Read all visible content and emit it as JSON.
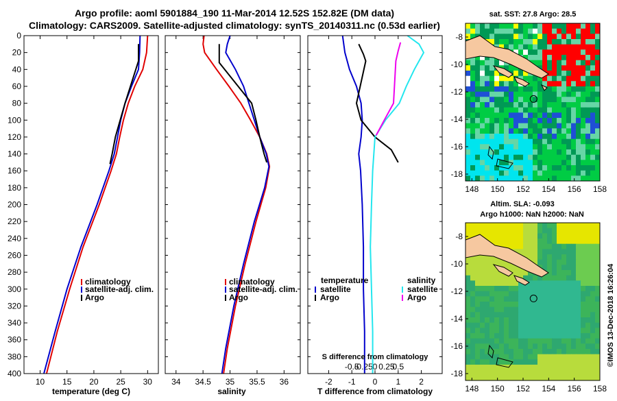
{
  "header": {
    "title_line1": "Argo profile: aoml 5901884_190 11-Mar-2014 12.52S 152.82E (DM data)",
    "title_line2": "Climatology: CARS2009. Satellite-adjusted climatology: synTS_20140311.nc (0.53d earlier)"
  },
  "colors": {
    "climatology": "#e00000",
    "satellite": "#0000cc",
    "argo": "#000000",
    "sal_satellite": "#22e6ee",
    "sal_argo": "#ee00ee"
  },
  "chart_data": [
    {
      "type": "line",
      "id": "temperature",
      "xlabel": "temperature (deg C)",
      "ylabel": "",
      "xlim": [
        7,
        32
      ],
      "ylim": [
        0,
        400
      ],
      "xticks": [
        10,
        15,
        20,
        25,
        30
      ],
      "yticks": [
        0,
        20,
        40,
        60,
        80,
        100,
        120,
        140,
        160,
        180,
        200,
        220,
        240,
        260,
        280,
        300,
        320,
        340,
        360,
        380,
        400
      ],
      "legend": [
        "climatology",
        "satellite-adj. clim.",
        "Argo"
      ],
      "series": [
        {
          "name": "climatology",
          "color": "#e00000",
          "depth": [
            0,
            20,
            40,
            60,
            80,
            100,
            120,
            140,
            160,
            200,
            250,
            300,
            350,
            400
          ],
          "values": [
            30.0,
            29.8,
            29.1,
            27.6,
            26.4,
            25.5,
            24.8,
            24.2,
            23.2,
            21.0,
            18.0,
            15.5,
            13.2,
            11.2
          ]
        },
        {
          "name": "satellite-adj. clim.",
          "color": "#0000cc",
          "depth": [
            0,
            20,
            40,
            60,
            80,
            100,
            120,
            140,
            160,
            200,
            250,
            300,
            350,
            400
          ],
          "values": [
            28.6,
            28.5,
            28.3,
            27.0,
            25.8,
            25.0,
            24.4,
            23.8,
            22.8,
            20.6,
            17.6,
            15.0,
            12.8,
            10.7
          ]
        },
        {
          "name": "Argo",
          "color": "#000000",
          "depth": [
            10,
            30,
            80,
            100,
            120,
            140,
            152
          ],
          "values": [
            28.3,
            28.3,
            25.8,
            24.9,
            24.0,
            23.4,
            23.0
          ]
        }
      ]
    },
    {
      "type": "line",
      "id": "salinity",
      "xlabel": "salinity",
      "ylabel": "",
      "xlim": [
        33.8,
        36.3
      ],
      "ylim": [
        0,
        400
      ],
      "xticks": [
        34,
        34.5,
        35,
        35.5,
        36
      ],
      "legend": [
        "climatology",
        "satellite-adj. clim.",
        "Argo"
      ],
      "series": [
        {
          "name": "climatology",
          "color": "#e00000",
          "depth": [
            0,
            10,
            20,
            40,
            60,
            80,
            100,
            120,
            140,
            155,
            180,
            220,
            270,
            320,
            370,
            400
          ],
          "values": [
            34.52,
            34.5,
            34.53,
            34.75,
            34.98,
            35.2,
            35.38,
            35.55,
            35.68,
            35.73,
            35.66,
            35.48,
            35.28,
            35.1,
            34.95,
            34.88
          ]
        },
        {
          "name": "satellite-adj. clim.",
          "color": "#0000cc",
          "depth": [
            0,
            10,
            20,
            40,
            60,
            80,
            100,
            120,
            140,
            155,
            180,
            220,
            270,
            320,
            370,
            400
          ],
          "values": [
            35.0,
            34.95,
            34.92,
            35.1,
            35.25,
            35.35,
            35.45,
            35.55,
            35.67,
            35.72,
            35.64,
            35.45,
            35.25,
            35.07,
            34.92,
            34.85
          ]
        },
        {
          "name": "Argo",
          "color": "#000000",
          "depth": [
            10,
            32,
            80,
            100,
            120,
            140,
            150
          ],
          "values": [
            34.8,
            34.8,
            35.4,
            35.48,
            35.55,
            35.63,
            35.68
          ]
        }
      ]
    },
    {
      "type": "line",
      "id": "difference",
      "xlabel": "T difference from climatology",
      "xlabel2": "S difference from climatology",
      "ylabel": "",
      "xlim": [
        -2.9,
        2.9
      ],
      "ylim": [
        0,
        400
      ],
      "xticks": [
        -2,
        -1,
        0,
        1,
        2
      ],
      "xticks2": [
        "-0.5",
        "-0.25",
        "0",
        "0.25",
        "0.5"
      ],
      "legend_temperature": {
        "title": "temperature",
        "items": [
          "satellite",
          "Argo"
        ]
      },
      "legend_salinity": {
        "title": "salinity",
        "items": [
          "satellite",
          "Argo"
        ]
      },
      "series": [
        {
          "name": "temperature satellite",
          "color": "#0000cc",
          "depth": [
            0,
            20,
            40,
            60,
            80,
            100,
            120,
            140,
            160,
            200,
            250,
            300,
            350,
            400
          ],
          "values": [
            -1.4,
            -1.3,
            -1.1,
            -0.8,
            -0.6,
            -0.55,
            -0.6,
            -0.7,
            -0.62,
            -0.55,
            -0.5,
            -0.5,
            -0.45,
            -0.45
          ]
        },
        {
          "name": "temperature Argo",
          "color": "#000000",
          "depth": [
            10,
            22,
            30,
            80,
            100,
            120,
            135,
            150
          ],
          "values": [
            -0.7,
            -0.5,
            -0.4,
            -0.8,
            -0.6,
            0.0,
            0.7,
            1.0
          ]
        },
        {
          "name": "salinity satellite",
          "color": "#22e6ee",
          "depth": [
            0,
            10,
            20,
            40,
            60,
            80,
            100,
            120,
            140,
            160,
            200,
            250,
            300,
            350,
            400
          ],
          "values": [
            1.4,
            1.9,
            2.1,
            1.7,
            1.35,
            1.05,
            0.45,
            0.0,
            -0.05,
            -0.1,
            -0.15,
            -0.2,
            -0.15,
            -0.1,
            -0.1
          ]
        },
        {
          "name": "salinity Argo",
          "color": "#ee00ee",
          "depth": [
            8,
            18,
            30,
            80,
            100,
            118
          ],
          "values": [
            1.1,
            1.0,
            0.9,
            0.8,
            0.4,
            0.05
          ]
        }
      ]
    },
    {
      "type": "heatmap",
      "id": "sst_map",
      "title": "sat. SST: 27.8 Argo: 28.5",
      "xlim": [
        147.5,
        158
      ],
      "ylim": [
        -18.5,
        -7
      ],
      "xticks": [
        148,
        150,
        152,
        154,
        156,
        158
      ],
      "yticks": [
        -8,
        -10,
        -12,
        -14,
        -16,
        -18
      ],
      "argo_position": {
        "lon": 152.82,
        "lat": -12.52
      }
    },
    {
      "type": "heatmap",
      "id": "sla_map",
      "title": "Altim. SLA: -0.093",
      "subtitle": "Argo h1000: NaN h2000: NaN",
      "xlim": [
        147.5,
        158
      ],
      "ylim": [
        -18.5,
        -7
      ],
      "xticks": [
        148,
        150,
        152,
        154,
        156,
        158
      ],
      "yticks": [
        -8,
        -10,
        -12,
        -14,
        -16,
        -18
      ],
      "argo_position": {
        "lon": 152.82,
        "lat": -12.52
      }
    }
  ],
  "footer": {
    "credit": "©IMOS 13-Dec-2018 16:26:04"
  }
}
